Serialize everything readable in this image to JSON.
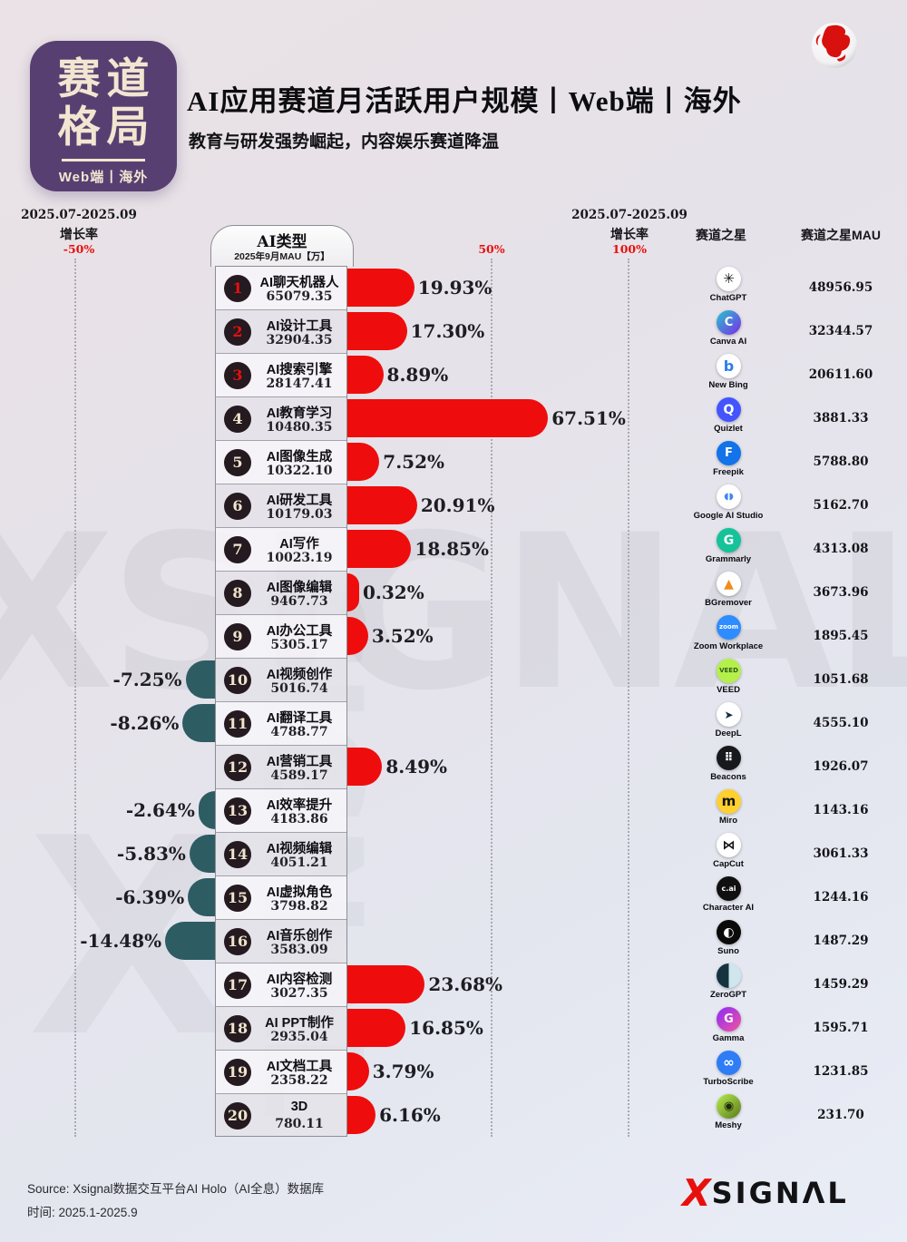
{
  "brand_badge": {
    "line1": "赛道",
    "line2": "格局",
    "subtitle": "Web端丨海外"
  },
  "header": {
    "title": "AI应用赛道月活跃用户规模丨Web端丨海外",
    "subtitle": "教育与研发强势崛起，内容娱乐赛道降温"
  },
  "axis": {
    "left": {
      "period": "2025.07-2025.09",
      "label": "增长率",
      "tick": "-50%"
    },
    "mid_tick": "50%",
    "right": {
      "period": "2025.07-2025.09",
      "label": "增长率",
      "tick": "100%"
    },
    "stars_header": "赛道之星",
    "stars_mau_header": "赛道之星MAU"
  },
  "table_header": {
    "title": "AI类型",
    "subtitle": "2025年9月MAU【万】"
  },
  "colors": {
    "positive_bar": "#ee0d0c",
    "negative_bar": "#2e5c63",
    "tick_red": "#e8100c",
    "brand_purple": "#574071",
    "rank_red": "#e8100c",
    "rank_cream": "#efe5cc"
  },
  "chart_data": {
    "type": "bar",
    "orientation": "horizontal-diverging",
    "period": "2025.07-2025.09",
    "value_unit": "增长率 %",
    "size_unit": "2025年9月MAU【万】",
    "axis_ticks_pct": [
      -50,
      50,
      100
    ],
    "rows": [
      {
        "rank": 1,
        "category": "AI聊天机器人",
        "mau_wan": "65079.35",
        "growth_pct": 19.93,
        "star": {
          "name": "ChatGPT",
          "mau_wan": "48956.95",
          "icon": {
            "slug": "chatgpt",
            "bg": "#ffffff",
            "fg": "#161616",
            "glyph": "✳",
            "size": 15
          }
        }
      },
      {
        "rank": 2,
        "category": "AI设计工具",
        "mau_wan": "32904.35",
        "growth_pct": 17.3,
        "star": {
          "name": "Canva AI",
          "mau_wan": "32344.57",
          "icon": {
            "slug": "canva-ai",
            "bg": "linear-gradient(135deg,#24c7cf,#7d2ae8)",
            "fg": "#ffffff",
            "glyph": "C",
            "size": 13
          }
        }
      },
      {
        "rank": 3,
        "category": "AI搜索引擎",
        "mau_wan": "28147.41",
        "growth_pct": 8.89,
        "star": {
          "name": "New Bing",
          "mau_wan": "20611.60",
          "icon": {
            "slug": "new-bing",
            "bg": "#ffffff",
            "fg": "#2a7df0",
            "glyph": "b",
            "size": 16
          }
        }
      },
      {
        "rank": 4,
        "category": "AI教育学习",
        "mau_wan": "10480.35",
        "growth_pct": 67.51,
        "star": {
          "name": "Quizlet",
          "mau_wan": "3881.33",
          "icon": {
            "slug": "quizlet",
            "bg": "#4255ff",
            "fg": "#ffffff",
            "glyph": "Q",
            "size": 14
          }
        }
      },
      {
        "rank": 5,
        "category": "AI图像生成",
        "mau_wan": "10322.10",
        "growth_pct": 7.52,
        "star": {
          "name": "Freepik",
          "mau_wan": "5788.80",
          "icon": {
            "slug": "freepik",
            "bg": "#1273eb",
            "fg": "#ffffff",
            "glyph": "F",
            "size": 13
          }
        }
      },
      {
        "rank": 6,
        "category": "AI研发工具",
        "mau_wan": "10179.03",
        "growth_pct": 20.91,
        "star": {
          "name": "Google AI Studio",
          "mau_wan": "5162.70",
          "icon": {
            "slug": "google-ai-studio",
            "bg": "#ffffff",
            "fg": "#4285f4",
            "glyph": "◖◗",
            "size": 10
          }
        }
      },
      {
        "rank": 7,
        "category": "AI写作",
        "mau_wan": "10023.19",
        "growth_pct": 18.85,
        "star": {
          "name": "Grammarly",
          "mau_wan": "4313.08",
          "icon": {
            "slug": "grammarly",
            "bg": "#15c39a",
            "fg": "#ffffff",
            "glyph": "G",
            "size": 14
          }
        }
      },
      {
        "rank": 8,
        "category": "AI图像编辑",
        "mau_wan": "9467.73",
        "growth_pct": 0.32,
        "star": {
          "name": "BGremover",
          "mau_wan": "3673.96",
          "icon": {
            "slug": "bgremover",
            "bg": "#ffffff",
            "fg": "#f08c1c",
            "glyph": "▲",
            "size": 14
          }
        }
      },
      {
        "rank": 9,
        "category": "AI办公工具",
        "mau_wan": "5305.17",
        "growth_pct": 3.52,
        "star": {
          "name": "Zoom Workplace",
          "mau_wan": "1895.45",
          "icon": {
            "slug": "zoom-workplace",
            "bg": "#2d8cff",
            "fg": "#ffffff",
            "glyph": "zoom",
            "size": 7
          }
        }
      },
      {
        "rank": 10,
        "category": "AI视频创作",
        "mau_wan": "5016.74",
        "growth_pct": -7.25,
        "star": {
          "name": "VEED",
          "mau_wan": "1051.68",
          "icon": {
            "slug": "veed",
            "bg": "#b5ef4b",
            "fg": "#2c5b1a",
            "glyph": "VEED",
            "size": 7
          }
        }
      },
      {
        "rank": 11,
        "category": "AI翻译工具",
        "mau_wan": "4788.77",
        "growth_pct": -8.26,
        "star": {
          "name": "DeepL",
          "mau_wan": "4555.10",
          "icon": {
            "slug": "deepl",
            "bg": "#ffffff",
            "fg": "#0f2b46",
            "glyph": "➤",
            "size": 12
          }
        }
      },
      {
        "rank": 12,
        "category": "AI营销工具",
        "mau_wan": "4589.17",
        "growth_pct": 8.49,
        "star": {
          "name": "Beacons",
          "mau_wan": "1926.07",
          "icon": {
            "slug": "beacons",
            "bg": "#17191c",
            "fg": "#ffffff",
            "glyph": "⠿",
            "size": 13
          }
        }
      },
      {
        "rank": 13,
        "category": "AI效率提升",
        "mau_wan": "4183.86",
        "growth_pct": -2.64,
        "star": {
          "name": "Miro",
          "mau_wan": "1143.16",
          "icon": {
            "slug": "miro",
            "bg": "#ffd02f",
            "fg": "#141414",
            "glyph": "m",
            "size": 15
          }
        }
      },
      {
        "rank": 14,
        "category": "AI视频编辑",
        "mau_wan": "4051.21",
        "growth_pct": -5.83,
        "star": {
          "name": "CapCut",
          "mau_wan": "3061.33",
          "icon": {
            "slug": "capcut",
            "bg": "#ffffff",
            "fg": "#141414",
            "glyph": "⋈",
            "size": 14
          }
        }
      },
      {
        "rank": 15,
        "category": "AI虚拟角色",
        "mau_wan": "3798.82",
        "growth_pct": -6.39,
        "star": {
          "name": "Character AI",
          "mau_wan": "1244.16",
          "icon": {
            "slug": "character-ai",
            "bg": "#101010",
            "fg": "#ffffff",
            "glyph": "c.ai",
            "size": 8
          }
        }
      },
      {
        "rank": 16,
        "category": "AI音乐创作",
        "mau_wan": "3583.09",
        "growth_pct": -14.48,
        "star": {
          "name": "Suno",
          "mau_wan": "1487.29",
          "icon": {
            "slug": "suno",
            "bg": "#0a0a0a",
            "fg": "#ffffff",
            "glyph": "◐",
            "size": 14
          }
        }
      },
      {
        "rank": 17,
        "category": "AI内容检测",
        "mau_wan": "3027.35",
        "growth_pct": 23.68,
        "star": {
          "name": "ZeroGPT",
          "mau_wan": "1459.29",
          "icon": {
            "slug": "zerogpt",
            "bg": "linear-gradient(90deg,#14333f 50%,#cfe6ee 50%)",
            "fg": "#ffffff",
            "glyph": "",
            "size": 10
          }
        }
      },
      {
        "rank": 18,
        "category": "AI PPT制作",
        "mau_wan": "2935.04",
        "growth_pct": 16.85,
        "star": {
          "name": "Gamma",
          "mau_wan": "1595.71",
          "icon": {
            "slug": "gamma",
            "bg": "linear-gradient(135deg,#8a2bf7,#f553a2)",
            "fg": "#ffffff",
            "glyph": "G",
            "size": 13
          }
        }
      },
      {
        "rank": 19,
        "category": "AI文档工具",
        "mau_wan": "2358.22",
        "growth_pct": 3.79,
        "star": {
          "name": "TurboScribe",
          "mau_wan": "1231.85",
          "icon": {
            "slug": "turboscribe",
            "bg": "#2f7df6",
            "fg": "#ffffff",
            "glyph": "∞",
            "size": 15
          }
        }
      },
      {
        "rank": 20,
        "category": "3D",
        "mau_wan": "780.11",
        "growth_pct": 6.16,
        "star": {
          "name": "Meshy",
          "mau_wan": "231.70",
          "icon": {
            "slug": "meshy",
            "bg": "linear-gradient(135deg,#b8ec4e,#5a7a1c)",
            "fg": "#1d2b0a",
            "glyph": "◉",
            "size": 13
          }
        }
      }
    ]
  },
  "footer": {
    "source": "Source:  Xsignal数据交互平台AI Holo（AI全息）数据库",
    "time": "时间:  2025.1-2025.9",
    "logo_x": "X",
    "logo_text": "SIGNΛL"
  }
}
